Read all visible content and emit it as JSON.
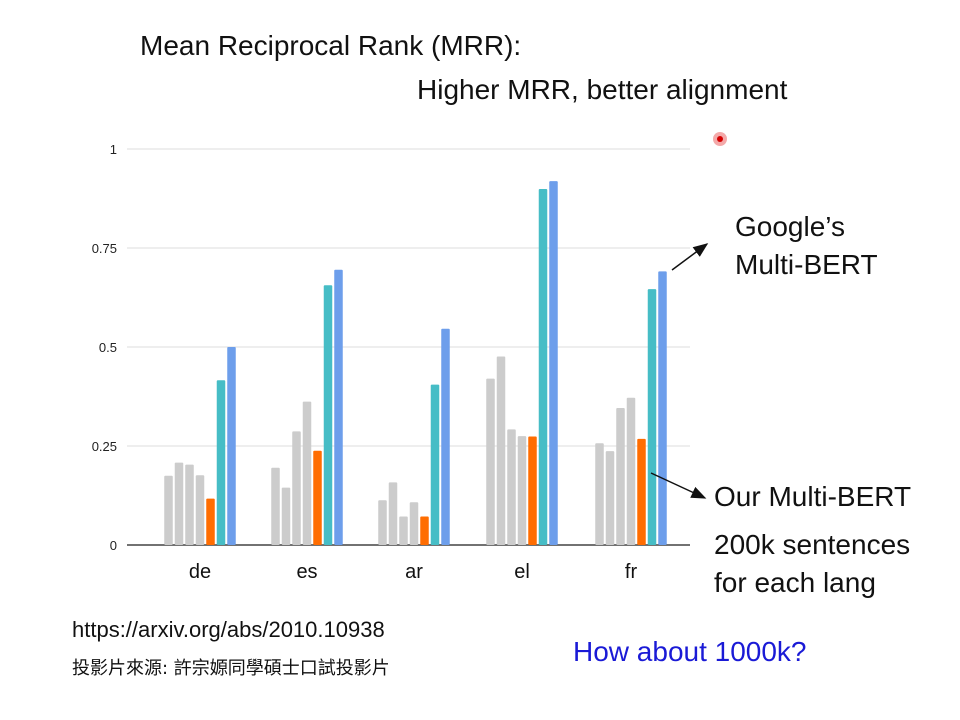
{
  "slide": {
    "title_line1": "Mean Reciprocal Rank (MRR):",
    "title_line2": "Higher MRR, better alignment",
    "google_label": [
      "Google’s",
      "Multi-BERT"
    ],
    "ours_label": "Our Multi-BERT",
    "sentences_label": [
      "200k sentences",
      "for each lang"
    ],
    "url": "https://arxiv.org/abs/2010.10938",
    "source": "投影片來源: 許宗嫄同學碩士口試投影片",
    "question": "How about 1000k?"
  },
  "colors": {
    "gray": "#cccccc",
    "orange": "#ff6d01",
    "teal": "#46bdc6",
    "blue": "#6d9eeb",
    "grid": "#dddddd",
    "axis": "#444444",
    "question": "#1a1ad6"
  },
  "chart_data": {
    "type": "bar",
    "categories": [
      "de",
      "es",
      "ar",
      "el",
      "fr"
    ],
    "yticks": [
      "0",
      "0.25",
      "0.5",
      "0.75",
      "1"
    ],
    "ylim": [
      0,
      1
    ],
    "series": [
      {
        "values": [
          0.175,
          0.195,
          0.113,
          0.42,
          0.257
        ],
        "color": "gray"
      },
      {
        "values": [
          0.208,
          0.145,
          0.158,
          0.476,
          0.237
        ],
        "color": "gray"
      },
      {
        "values": [
          0.203,
          0.287,
          0.072,
          0.292,
          0.346
        ],
        "color": "gray"
      },
      {
        "values": [
          0.176,
          0.362,
          0.108,
          0.275,
          0.372
        ],
        "color": "gray"
      },
      {
        "values": [
          0.117,
          0.238,
          0.072,
          0.274,
          0.268
        ],
        "color": "orange"
      },
      {
        "values": [
          0.416,
          0.656,
          0.405,
          0.899,
          0.646
        ],
        "color": "teal"
      },
      {
        "values": [
          0.5,
          0.695,
          0.546,
          0.919,
          0.691
        ],
        "color": "blue"
      }
    ]
  }
}
